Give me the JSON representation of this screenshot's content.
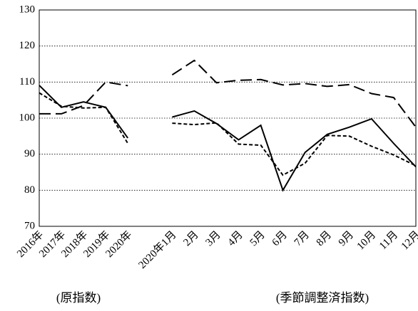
{
  "chart_data": {
    "type": "line",
    "categories": [
      "2016年",
      "2017年",
      "2018年",
      "2019年",
      "2020年",
      null,
      "2020年1月",
      "2月",
      "3月",
      "4月",
      "5月",
      "6月",
      "7月",
      "8月",
      "9月",
      "10月",
      "11月",
      "12月"
    ],
    "series": [
      {
        "color": "#000000",
        "dash": "solid",
        "values": [
          109.1,
          103,
          104.5,
          103,
          94.5,
          null,
          100.3,
          102,
          98.5,
          94,
          98,
          80,
          90.5,
          95.5,
          97.5,
          99.8,
          93,
          86.5
        ]
      },
      {
        "color": "#000000",
        "dash": "long",
        "values": [
          101.2,
          101.2,
          103.5,
          110,
          109,
          null,
          112,
          116,
          109.8,
          110.5,
          110.7,
          109.2,
          109.6,
          108.8,
          109.3,
          106.8,
          105.7,
          97.5
        ]
      },
      {
        "color": "#000000",
        "dash": "short",
        "values": [
          107,
          103.3,
          102.8,
          103,
          93,
          null,
          98.6,
          98.2,
          98.7,
          92.8,
          92.5,
          84.2,
          87.5,
          95.2,
          95,
          92.2,
          89.8,
          86.8
        ]
      }
    ],
    "ylim": [
      70,
      130
    ],
    "yticks": [
      70,
      80,
      90,
      100,
      110,
      120,
      130
    ],
    "grid": true,
    "annotations": [
      "(原指数)",
      "(季節調整済指数)"
    ]
  }
}
